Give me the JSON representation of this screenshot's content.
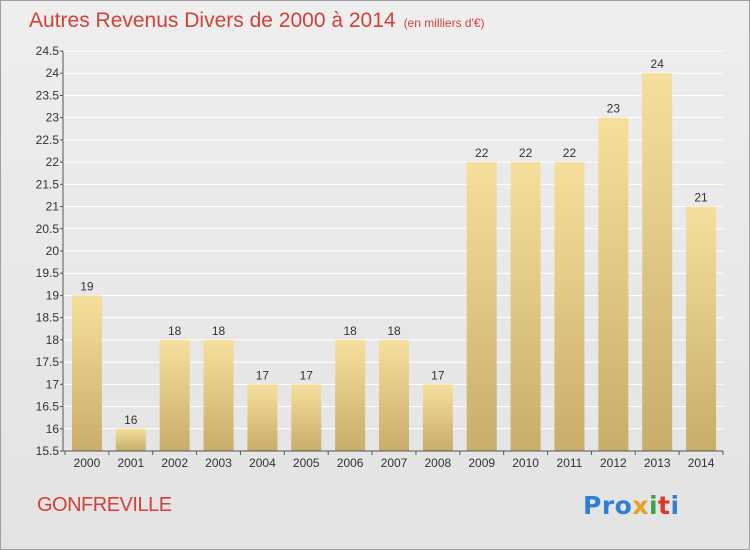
{
  "header": {
    "title": "Autres Revenus Divers de 2000 à 2014",
    "unit": "(en milliers d'€)"
  },
  "footer": {
    "city": "GONFREVILLE",
    "brand": "Proxiti",
    "brand_colors": [
      "#2f7fd4",
      "#e8a020",
      "#3aa34a",
      "#d83a2e",
      "#2f7fd4"
    ]
  },
  "colors": {
    "title": "#d2413a",
    "bar_light": "#f6df9c",
    "bar_dark": "#c9ad6a",
    "gridline": "#ffffff",
    "background": "#e8e8e8"
  },
  "chart_data": {
    "type": "bar",
    "title": "Autres Revenus Divers de 2000 à 2014",
    "subtitle": "(en milliers d'€)",
    "categories": [
      "2000",
      "2001",
      "2002",
      "2003",
      "2004",
      "2005",
      "2006",
      "2007",
      "2008",
      "2009",
      "2010",
      "2011",
      "2012",
      "2013",
      "2014"
    ],
    "values": [
      19,
      16,
      18,
      18,
      17,
      17,
      18,
      18,
      17,
      22,
      22,
      22,
      23,
      24,
      21
    ],
    "data_labels": [
      "19",
      "16",
      "18",
      "18",
      "17",
      "17",
      "18",
      "18",
      "17",
      "22",
      "22",
      "22",
      "23",
      "24",
      "21"
    ],
    "ylim": [
      15.5,
      24.5
    ],
    "yticks": [
      15.5,
      16,
      16.5,
      17,
      17.5,
      18,
      18.5,
      19,
      19.5,
      20,
      20.5,
      21,
      21.5,
      22,
      22.5,
      23,
      23.5,
      24,
      24.5
    ],
    "grid": true,
    "xlabel": "",
    "ylabel": ""
  }
}
